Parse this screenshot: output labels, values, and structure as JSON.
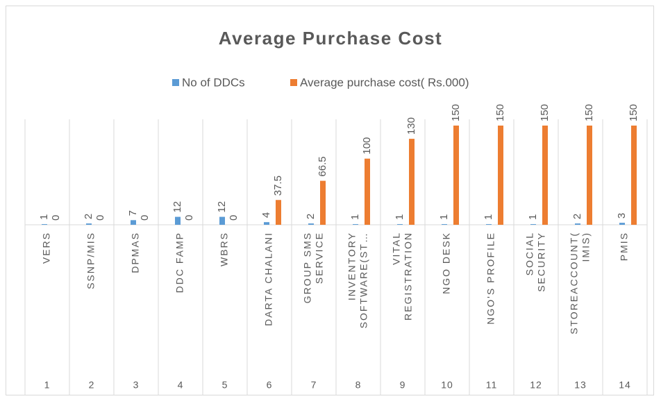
{
  "chart_data": {
    "type": "bar",
    "title": "Average Purchase Cost",
    "categories": [
      "VERS",
      "SSNP/MIS",
      "DPMAS",
      "DDC FAMP",
      "WBRS",
      "DARTA CHALANI",
      "GROUP SMS SERVICE",
      "INVENTORY SOFTWARE(ST…",
      "VITAL REGISTRATION",
      "NGO DESK",
      "NGO'S PROFILE",
      "SOCIAL SECURITY",
      "STOREACCOUNT( IMIS)",
      "PMIS"
    ],
    "category_numbers": [
      "1",
      "2",
      "3",
      "4",
      "5",
      "6",
      "7",
      "8",
      "9",
      "10",
      "11",
      "12",
      "13",
      "14"
    ],
    "series": [
      {
        "name": "No of DDCs",
        "color": "#5b9bd5",
        "values": [
          1,
          2,
          7,
          12,
          12,
          4,
          2,
          1,
          1,
          1,
          1,
          1,
          2,
          3
        ]
      },
      {
        "name": "Average purchase cost( Rs.000)",
        "color": "#ed7d31",
        "values": [
          0,
          0,
          0,
          0,
          0,
          37.5,
          66.5,
          100,
          130,
          150,
          150,
          150,
          150,
          150
        ]
      }
    ],
    "ylim": [
      0,
      150
    ],
    "legend": "top",
    "data_labels": true
  }
}
